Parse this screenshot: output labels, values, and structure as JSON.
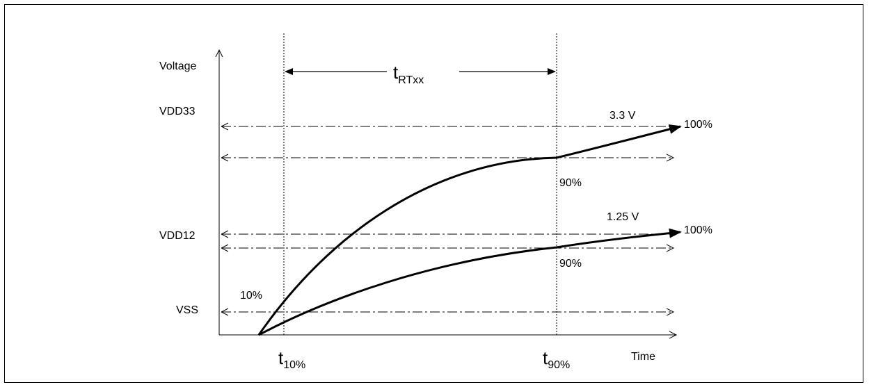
{
  "axes": {
    "y_label": "Voltage",
    "x_label": "Time"
  },
  "levels": [
    {
      "name": "VDD33",
      "label": "VDD33"
    },
    {
      "name": "VDD12",
      "label": "VDD12"
    },
    {
      "name": "VSS",
      "label": "VSS"
    }
  ],
  "annotations": {
    "rise_time": {
      "main": "t",
      "sub": "RTxx"
    },
    "t10": {
      "main": "t",
      "sub": "10%"
    },
    "t90": {
      "main": "t",
      "sub": "90%"
    },
    "v33": "3.3 V",
    "v125": "1.25 V",
    "pct100_top": "100%",
    "pct90_top": "90%",
    "pct100_bottom": "100%",
    "pct90_bottom": "90%",
    "pct10": "10%"
  },
  "colors": {
    "line": "#000000",
    "background": "#ffffff"
  }
}
